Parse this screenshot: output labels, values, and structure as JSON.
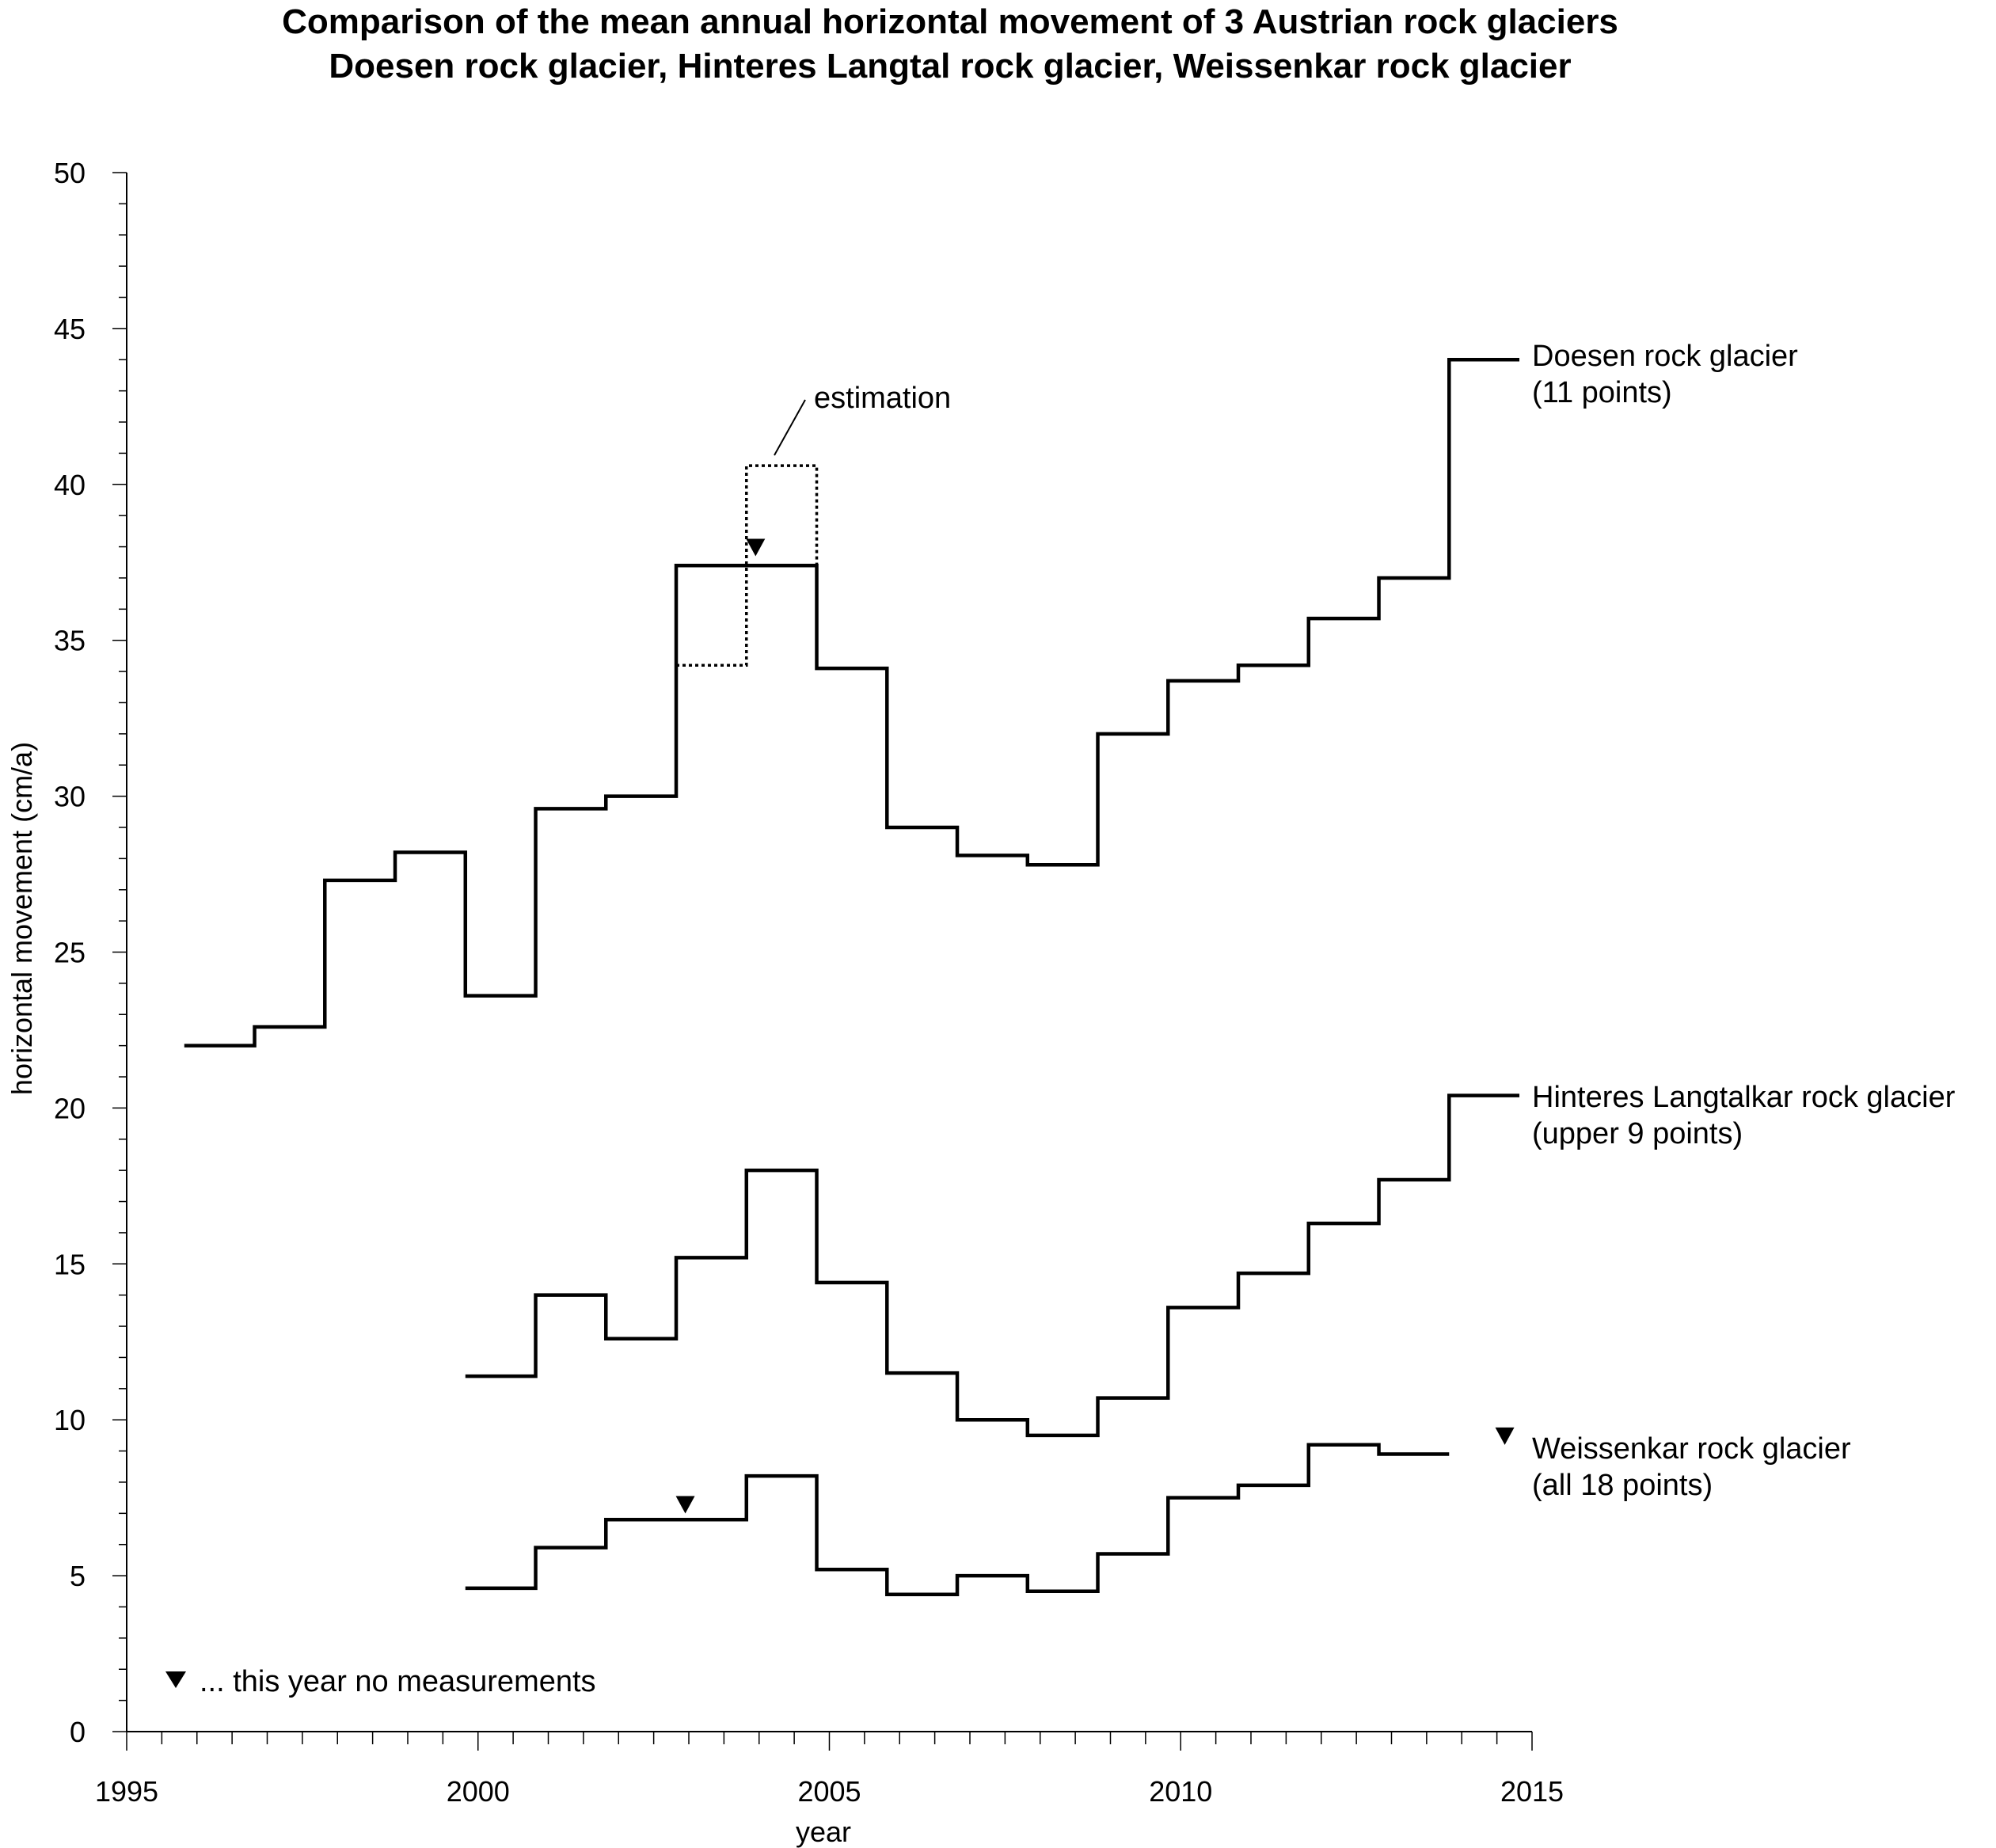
{
  "chart_data": {
    "type": "line",
    "title": "Comparison of the mean annual horizontal movement of 3 Austrian rock glaciers",
    "subtitle": "Doesen rock glacier, Hinteres Langtal rock glacier, Weissenkar rock glacier",
    "xlabel": "year",
    "ylabel": "horizontal movement (cm/a)",
    "xlim": [
      1995,
      2015
    ],
    "ylim": [
      0,
      50
    ],
    "x_ticks": [
      1995,
      2000,
      2005,
      2010,
      2015
    ],
    "y_ticks": [
      0,
      5,
      10,
      15,
      20,
      25,
      30,
      35,
      40,
      45,
      50
    ],
    "grid": false,
    "step_style": "horizontal segment per year",
    "series": [
      {
        "name": "Doesen rock glacier",
        "name_line2": "(11 points)",
        "x": [
          1996,
          1997,
          1998,
          1999,
          2000,
          2001,
          2002,
          2003,
          2004,
          2005,
          2006,
          2007,
          2008,
          2009,
          2010,
          2011,
          2012,
          2013,
          2014
        ],
        "values": [
          22.0,
          22.6,
          27.3,
          28.2,
          23.6,
          29.6,
          30.0,
          37.4,
          37.4,
          34.1,
          29.0,
          28.1,
          27.8,
          32.0,
          33.7,
          34.2,
          35.7,
          37.0,
          44.0
        ]
      },
      {
        "name": "Hinteres Langtalkar rock glacier",
        "name_line2": "(upper 9 points)",
        "x": [
          2000,
          2001,
          2002,
          2003,
          2004,
          2005,
          2006,
          2007,
          2008,
          2009,
          2010,
          2011,
          2012,
          2013,
          2014
        ],
        "values": [
          11.4,
          14.0,
          12.6,
          15.2,
          18.0,
          14.4,
          11.5,
          10.0,
          9.5,
          10.7,
          13.6,
          14.7,
          16.3,
          17.7,
          20.4
        ]
      },
      {
        "name": "Weissenkar rock glacier",
        "name_line2": "(all 18 points)",
        "x": [
          2000,
          2001,
          2002,
          2003,
          2004,
          2005,
          2006,
          2007,
          2008,
          2009,
          2010,
          2011,
          2012,
          2013
        ],
        "values": [
          4.6,
          5.9,
          6.8,
          6.8,
          8.2,
          5.2,
          4.4,
          5.0,
          4.5,
          5.7,
          7.5,
          7.9,
          9.2,
          8.9
        ]
      }
    ],
    "estimation": {
      "label": "estimation",
      "x": [
        2003,
        2004
      ],
      "values": [
        34.2,
        40.6
      ]
    },
    "no_measurement_markers": [
      {
        "series": "Doesen rock glacier",
        "x": 2004,
        "y": 38.0
      },
      {
        "series": "Weissenkar rock glacier",
        "x": 2003,
        "y": 7.3
      },
      {
        "series": "Weissenkar rock glacier",
        "x": 2015,
        "y": 9.5
      }
    ],
    "legend_note": "... this year no measurements"
  }
}
